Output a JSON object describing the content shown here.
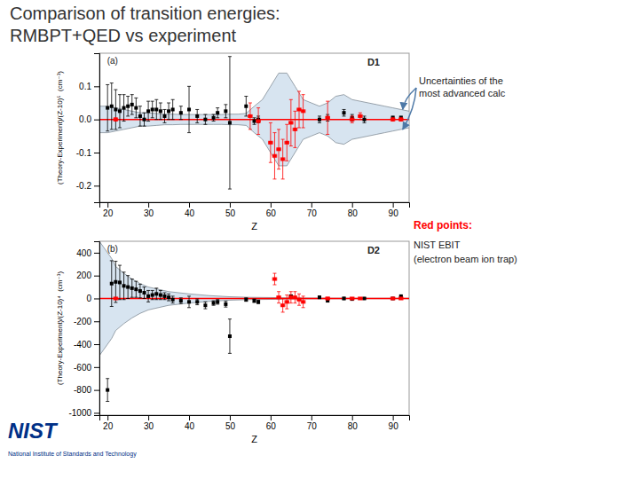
{
  "chart_data": [
    {
      "type": "scatter",
      "title": "Comparison of transition energies:",
      "subtitle": "RMBPT+QED vs experiment",
      "xlabel": "Z",
      "ylabel": "(Theory-Experiment)/(Z-10)⁵  (cm⁻¹)",
      "xlim": [
        18,
        94
      ],
      "xticks": [
        20,
        30,
        40,
        50,
        60,
        70,
        80,
        90
      ],
      "ylim": [
        -0.25,
        0.2
      ],
      "yticks": [
        -0.2,
        -0.1,
        {
          "value": 0.0,
          "label": "0.0"
        },
        0.1
      ],
      "annotations": [
        {
          "text": "(a)"
        },
        {
          "text": "D1"
        },
        {
          "text": "Uncertainties of the"
        },
        {
          "text": "most advanced calc"
        }
      ],
      "series": [
        {
          "type": "band",
          "color": "#c6d9ea",
          "x": [
            18,
            20,
            22,
            24,
            26,
            28,
            30,
            32,
            34,
            36,
            38,
            40,
            42,
            44,
            46,
            48,
            50,
            52,
            54,
            56,
            58,
            60,
            62,
            64,
            66,
            68,
            70,
            72,
            74,
            76,
            78,
            80,
            82,
            84,
            86,
            88,
            90,
            92,
            94
          ],
          "upper": [
            0.04,
            0.04,
            0.035,
            0.03,
            0.025,
            0.02,
            0.02,
            0.018,
            0.016,
            0.016,
            0.015,
            0.015,
            0.015,
            0.015,
            0.015,
            0.015,
            0.016,
            0.016,
            0.018,
            0.04,
            0.06,
            0.1,
            0.14,
            0.14,
            0.1,
            0.06,
            0.05,
            0.04,
            0.05,
            0.07,
            0.075,
            0.06,
            0.055,
            0.05,
            0.045,
            0.04,
            0.035,
            0.03,
            0.025
          ],
          "lower": [
            -0.04,
            -0.04,
            -0.035,
            -0.03,
            -0.025,
            -0.02,
            -0.02,
            -0.018,
            -0.016,
            -0.016,
            -0.015,
            -0.015,
            -0.015,
            -0.015,
            -0.015,
            -0.015,
            -0.016,
            -0.016,
            -0.018,
            -0.04,
            -0.06,
            -0.1,
            -0.14,
            -0.14,
            -0.1,
            -0.06,
            -0.05,
            -0.04,
            -0.05,
            -0.07,
            -0.075,
            -0.06,
            -0.055,
            -0.05,
            -0.045,
            -0.04,
            -0.035,
            -0.03,
            -0.025
          ]
        },
        {
          "type": "hline",
          "color": "red",
          "values": [
            0
          ]
        },
        {
          "type": "scatter",
          "marker": "square",
          "color": "black",
          "x": [
            20,
            21,
            22,
            23,
            24,
            25,
            26,
            27,
            28,
            29,
            30,
            31,
            32,
            33,
            34,
            35,
            36,
            38,
            40,
            42,
            44,
            46,
            47,
            49,
            50,
            54,
            56,
            57,
            72,
            74,
            78,
            80,
            83,
            90,
            92
          ],
          "values": [
            0.035,
            0.04,
            0.03,
            0.025,
            0.035,
            0.04,
            0.045,
            0.035,
            0.01,
            0.0,
            0.025,
            0.03,
            0.03,
            0.025,
            0.01,
            0.025,
            0.03,
            0.02,
            0.03,
            0.01,
            0.0,
            0.005,
            0.02,
            0.025,
            -0.01,
            0.04,
            -0.005,
            0.0,
            0.0,
            0.005,
            0.02,
            0.005,
            0.0,
            0.005,
            0.005
          ],
          "yerr": [
            0.07,
            0.07,
            0.06,
            0.05,
            0.04,
            0.03,
            0.03,
            0.03,
            0.03,
            0.02,
            0.03,
            0.025,
            0.03,
            0.025,
            0.02,
            0.025,
            0.03,
            0.02,
            0.07,
            0.02,
            0.015,
            0.01,
            0.015,
            0.02,
            0.2,
            0.03,
            0.01,
            0.01,
            0.01,
            0.01,
            0.01,
            0.01,
            0.01,
            0.005,
            0.005
          ]
        },
        {
          "type": "scatter",
          "marker": "square",
          "color": "red",
          "x": [
            22,
            55,
            57,
            60,
            61,
            62,
            63,
            64,
            65,
            66,
            67,
            68,
            74,
            80,
            82,
            90,
            92
          ],
          "values": [
            0.0,
            0.01,
            -0.005,
            -0.07,
            -0.11,
            -0.09,
            -0.12,
            -0.07,
            -0.01,
            -0.03,
            0.03,
            0.025,
            0.005,
            0.0,
            0.01,
            0.0,
            0.0
          ],
          "yerr": [
            0.005,
            0.04,
            0.04,
            0.06,
            0.07,
            0.06,
            0.06,
            0.055,
            0.07,
            0.055,
            0.055,
            0.05,
            0.05,
            0.01,
            0.01,
            0.005,
            0.005
          ],
          "xerr": [
            0.5,
            0.5,
            0.5,
            0.5,
            0.5,
            0.5,
            0.5,
            0.5,
            0.5,
            0.5,
            0.5,
            0.5,
            0.5,
            0.5,
            0.5,
            0.5,
            0.5
          ]
        }
      ]
    },
    {
      "type": "scatter",
      "xlabel": "Z",
      "ylabel": "(Theory-Experiment)/(Z-10)⁴  (cm⁻¹)",
      "xlim": [
        18,
        94
      ],
      "xticks": [
        20,
        30,
        40,
        50,
        60,
        70,
        80,
        90
      ],
      "ylim": [
        -1020,
        500
      ],
      "yticks": [
        -1000,
        -800,
        -600,
        -400,
        -200,
        0,
        200,
        400
      ],
      "annotations": [
        {
          "text": "(b)"
        },
        {
          "text": "D2"
        },
        {
          "text": "Red points:",
          "color": "red"
        },
        {
          "text": "NIST EBIT"
        },
        {
          "text": "(electron beam ion trap)"
        },
        {
          "text": "NIST",
          "color": "#003087"
        },
        {
          "text": "National Institute of Standards and Technology",
          "color": "#003087"
        }
      ],
      "series": [
        {
          "type": "band",
          "color": "#c6d9ea",
          "x": [
            18,
            19,
            20,
            21,
            22,
            24,
            26,
            28,
            30,
            35,
            40,
            45,
            50,
            55,
            60,
            65,
            70,
            75,
            80,
            85,
            90,
            94
          ],
          "upper": [
            500,
            450,
            400,
            350,
            280,
            220,
            170,
            130,
            100,
            60,
            40,
            25,
            15,
            10,
            8,
            5,
            4,
            3,
            2,
            2,
            2,
            2
          ],
          "lower": [
            -500,
            -450,
            -400,
            -350,
            -280,
            -220,
            -170,
            -130,
            -100,
            -60,
            -40,
            -25,
            -15,
            -10,
            -8,
            -5,
            -4,
            -3,
            -2,
            -2,
            -2,
            -2
          ]
        },
        {
          "type": "hline",
          "color": "red",
          "values": [
            0
          ]
        },
        {
          "type": "scatter",
          "marker": "square",
          "color": "black",
          "x": [
            20,
            21,
            22,
            23,
            24,
            25,
            26,
            27,
            28,
            29,
            30,
            31,
            32,
            33,
            34,
            35,
            36,
            38,
            40,
            42,
            44,
            46,
            47,
            49,
            50,
            54,
            56,
            57,
            65,
            72,
            74,
            78,
            80,
            83,
            90,
            92
          ],
          "values": [
            -800,
            130,
            145,
            140,
            110,
            100,
            90,
            80,
            65,
            50,
            20,
            30,
            40,
            30,
            20,
            10,
            -10,
            -20,
            -30,
            -30,
            -60,
            -40,
            -30,
            -50,
            -330,
            -10,
            -20,
            -30,
            20,
            10,
            -20,
            0,
            -5,
            0,
            0,
            20
          ],
          "yerr": [
            100,
            200,
            180,
            150,
            120,
            100,
            80,
            70,
            60,
            50,
            50,
            40,
            50,
            40,
            30,
            30,
            30,
            25,
            50,
            25,
            30,
            20,
            20,
            25,
            150,
            15,
            15,
            15,
            10,
            10,
            10,
            10,
            5,
            5,
            5,
            5
          ]
        },
        {
          "type": "scatter",
          "marker": "square",
          "color": "red",
          "x": [
            22,
            61,
            62,
            63,
            64,
            65,
            66,
            67,
            68,
            74,
            80,
            82,
            90,
            92
          ],
          "values": [
            0,
            170,
            10,
            -60,
            -30,
            10,
            10,
            -10,
            -30,
            0,
            0,
            0,
            0,
            0
          ],
          "yerr": [
            5,
            50,
            50,
            60,
            60,
            50,
            50,
            50,
            50,
            10,
            5,
            5,
            5,
            5
          ],
          "xerr": [
            0.5,
            0.5,
            0.5,
            0.5,
            0.5,
            0.5,
            0.5,
            0.5,
            0.5,
            0.5,
            0.5,
            0.5,
            0.5,
            0.5
          ]
        }
      ]
    }
  ]
}
